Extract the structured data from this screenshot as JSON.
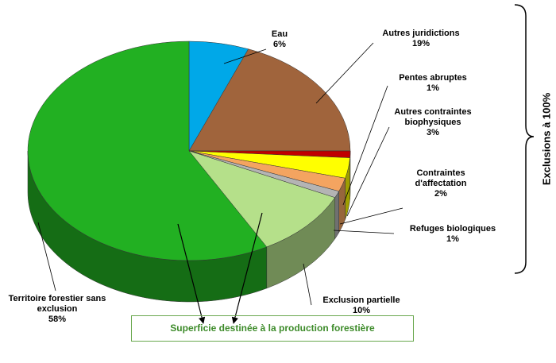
{
  "chart_data": {
    "type": "pie3d",
    "categories": [
      "Eau",
      "Autres juridictions",
      "Pentes abruptes",
      "Autres contraintes biophysiques",
      "Contraintes d'affectation",
      "Refuges biologiques",
      "Exclusion partielle",
      "Territoire forestier sans exclusion"
    ],
    "values": [
      6,
      19,
      1,
      3,
      2,
      1,
      10,
      58
    ],
    "value_labels": [
      "6%",
      "19%",
      "1%",
      "3%",
      "2%",
      "1%",
      "10%",
      "58%"
    ],
    "colors": [
      "#00a8e8",
      "#a0643c",
      "#c00000",
      "#ffff00",
      "#f4a460",
      "#b4b4b4",
      "#b5e08a",
      "#22b022"
    ],
    "annotations": [
      "Superficie destinée à la production forestière",
      "Exclusions à 100%"
    ]
  }
}
